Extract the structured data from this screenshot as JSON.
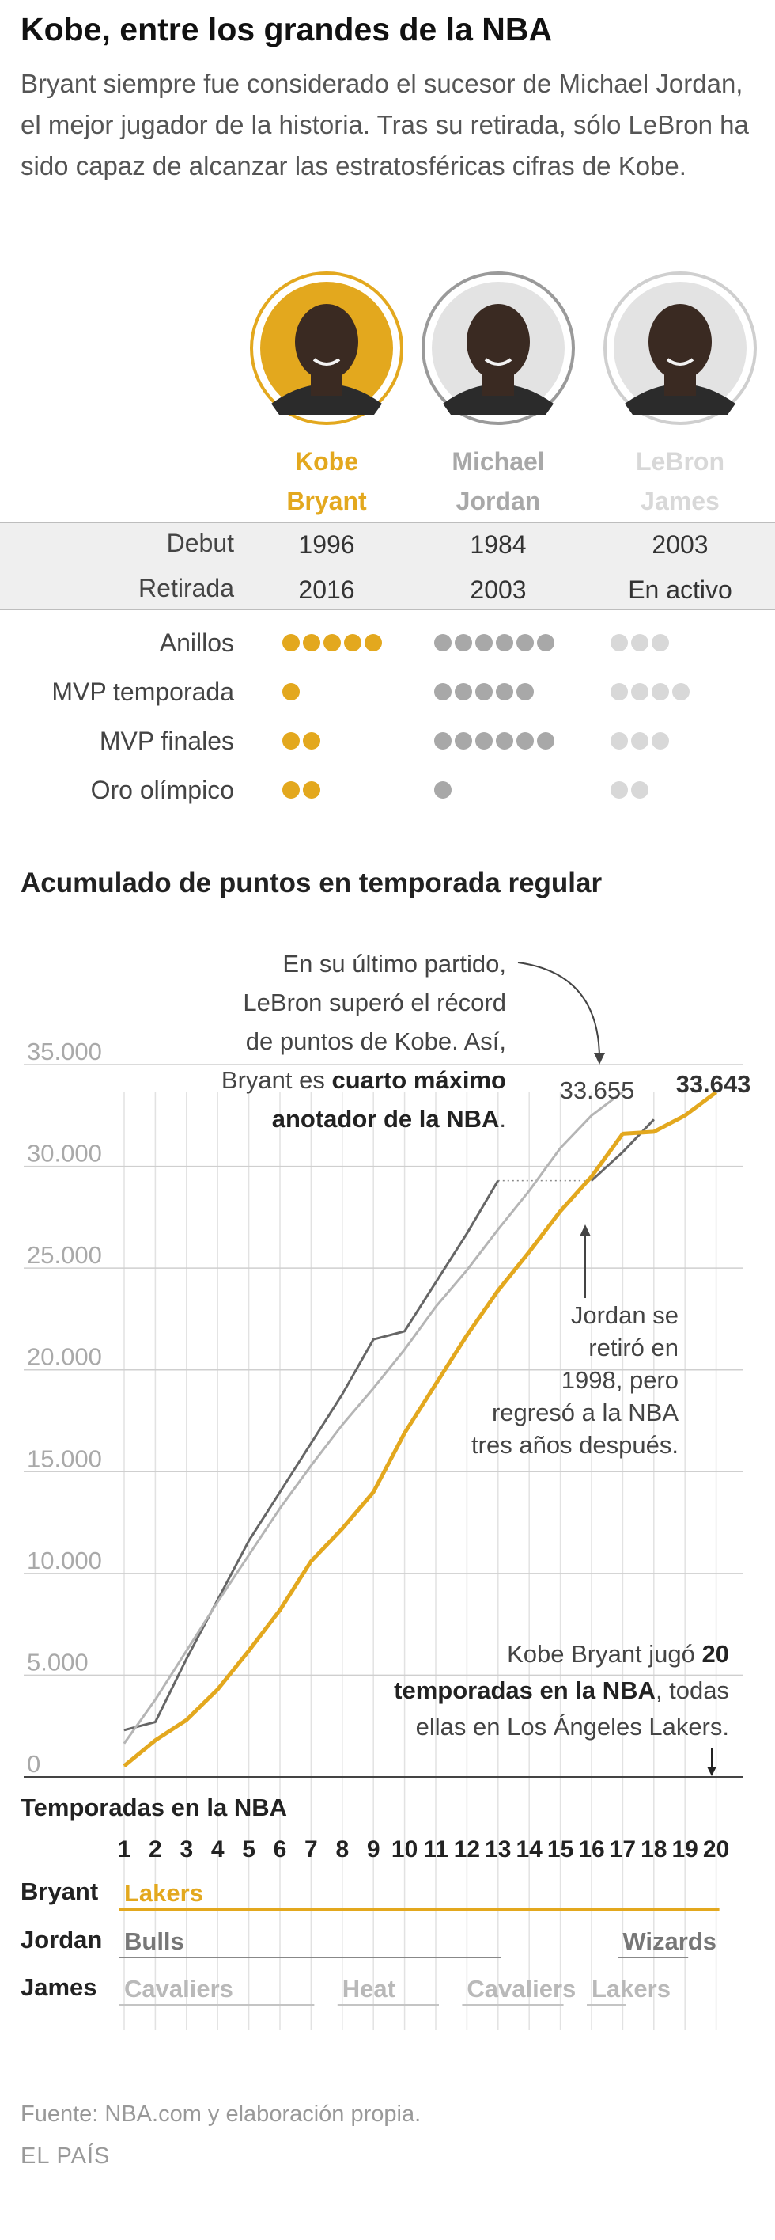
{
  "title": "Kobe, entre los grandes de la NBA",
  "intro": "Bryant siempre fue considerado el sucesor de Michael Jordan, el mejor jugador de la historia. Tras su retirada, sólo LeBron ha sido capaz de alcanzar las estratosféricas cifras de Kobe.",
  "colors": {
    "bryant": "#e3a81e",
    "jordan": "#a8a8a8",
    "james": "#d8d8d8",
    "jordan_line": "#666666",
    "james_line": "#b5b5b5"
  },
  "players": [
    {
      "first": "Kobe",
      "last": "Bryant",
      "color": "#e3a81e"
    },
    {
      "first": "Michael",
      "last": "Jordan",
      "color": "#a8a8a8"
    },
    {
      "first": "LeBron",
      "last": "James",
      "color": "#d8d8d8"
    }
  ],
  "table": {
    "debut_label": "Debut",
    "retiro_label": "Retirada",
    "debut": [
      "1996",
      "1984",
      "2003"
    ],
    "retiro": [
      "2016",
      "2003",
      "En activo"
    ]
  },
  "stats": [
    {
      "label": "Anillos",
      "values": [
        5,
        6,
        3
      ]
    },
    {
      "label": "MVP temporada",
      "values": [
        1,
        5,
        4
      ]
    },
    {
      "label": "MVP finales",
      "values": [
        2,
        6,
        3
      ]
    },
    {
      "label": "Oro olímpico",
      "values": [
        2,
        1,
        2
      ]
    }
  ],
  "chart_title": "Acumulado de puntos en temporada regular",
  "chart_data": {
    "type": "line",
    "xlabel": "Temporadas en la NBA",
    "ylabel": "",
    "x": [
      1,
      2,
      3,
      4,
      5,
      6,
      7,
      8,
      9,
      10,
      11,
      12,
      13,
      14,
      15,
      16,
      17,
      18,
      19,
      20
    ],
    "ylim": [
      0,
      35000
    ],
    "yticks": [
      0,
      5000,
      10000,
      15000,
      20000,
      25000,
      30000,
      35000
    ],
    "ytick_labels": [
      "0",
      "5.000",
      "10.000",
      "15.000",
      "20.000",
      "25.000",
      "30.000",
      "35.000"
    ],
    "series": [
      {
        "name": "Jordan",
        "x": [
          1,
          2,
          3,
          4,
          5,
          6,
          7,
          8,
          9,
          10,
          11,
          12,
          13,
          16,
          17,
          18
        ],
        "values": [
          2300,
          2700,
          5800,
          8700,
          11600,
          14000,
          16400,
          18800,
          21500,
          21900,
          24300,
          26700,
          29300,
          29300,
          30700,
          32300
        ]
      },
      {
        "name": "James",
        "x": [
          1,
          2,
          3,
          4,
          5,
          6,
          7,
          8,
          9,
          10,
          11,
          12,
          13,
          14,
          15,
          16,
          17
        ],
        "values": [
          1650,
          3800,
          6200,
          8600,
          10900,
          13200,
          15300,
          17300,
          19100,
          21000,
          23100,
          24900,
          26900,
          28800,
          30900,
          32500,
          33655
        ]
      },
      {
        "name": "Bryant",
        "x": [
          1,
          2,
          3,
          4,
          5,
          6,
          7,
          8,
          9,
          10,
          11,
          12,
          13,
          14,
          15,
          16,
          17,
          18,
          19,
          20
        ],
        "values": [
          540,
          1800,
          2800,
          4300,
          6200,
          8200,
          10600,
          12200,
          14000,
          16900,
          19300,
          21700,
          23900,
          25800,
          27800,
          29500,
          31600,
          31700,
          32500,
          33643
        ]
      }
    ],
    "end_labels": {
      "james": "33.655",
      "bryant": "33.643"
    },
    "annotations": [
      {
        "text": [
          "En su último partido,",
          "LeBron superó el récord",
          "de puntos de Kobe. Así,",
          "Bryant es ",
          "anotador de la NBA",
          "."
        ],
        "bold": [
          "cuarto máximo",
          "anotador de la NBA"
        ]
      },
      {
        "text": [
          "Jordan se",
          "retiró en",
          "1998, pero",
          "regresó a la NBA",
          "tres años después."
        ]
      },
      {
        "text": [
          "Kobe Bryant jugó ",
          "20",
          "temporadas en la NBA",
          ", todas",
          "ellas en Los Ángeles Lakers."
        ]
      }
    ],
    "grid": true
  },
  "annot_1": {
    "l1": "En su último partido,",
    "l2": "LeBron superó el récord",
    "l3": "de puntos de Kobe. Así,",
    "l4a": "Bryant es ",
    "l4b": "cuarto máximo",
    "l5a": "anotador de la NBA",
    "l5b": "."
  },
  "annot_2": {
    "l1": "Jordan se",
    "l2": "retiró en",
    "l3": "1998, pero",
    "l4": "regresó a la NBA",
    "l5": "tres años después."
  },
  "annot_3": {
    "l1a": "Kobe Bryant jugó ",
    "l1b": "20",
    "l2a": "temporadas en la NBA",
    "l2b": ", todas",
    "l3": "ellas en Los Ángeles Lakers."
  },
  "teams": {
    "row_labels": [
      "Bryant",
      "Jordan",
      "James"
    ],
    "bryant": [
      {
        "team": "Lakers",
        "from": 1,
        "to": 20
      }
    ],
    "jordan": [
      {
        "team": "Bulls",
        "from": 1,
        "to": 13
      },
      {
        "team": "Wizards",
        "from": 17,
        "to": 19
      }
    ],
    "james": [
      {
        "team": "Cavaliers",
        "from": 1,
        "to": 7
      },
      {
        "team": "Heat",
        "from": 8,
        "to": 11
      },
      {
        "team": "Cavaliers",
        "from": 12,
        "to": 15
      },
      {
        "team": "Lakers",
        "from": 16,
        "to": 17
      }
    ]
  },
  "source": "Fuente: NBA.com y elaboración propia.",
  "credit": "EL PAÍS"
}
